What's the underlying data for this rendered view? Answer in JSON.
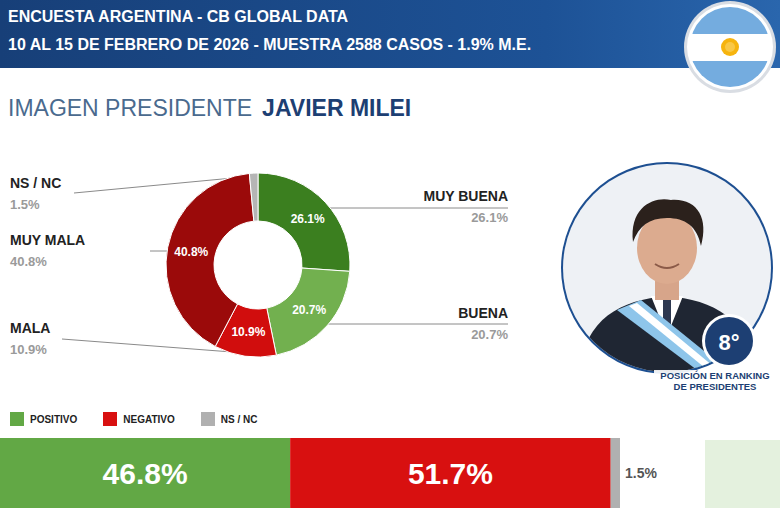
{
  "header": {
    "line1": "ENCUESTA ARGENTINA - CB GLOBAL DATA",
    "line2": "10 AL 15 DE FEBRERO DE 2026 - MUESTRA 2588 CASOS - 1.9% M.E.",
    "title": "IMAGEN PRESIDENTE",
    "name": "JAVIER MILEI"
  },
  "badge": {
    "rank": "8°",
    "caption": "POSICIÓN EN RANKING DE PRESIDENTES"
  },
  "chart_data": [
    {
      "type": "pie",
      "categories": [
        "MUY BUENA",
        "BUENA",
        "MALA",
        "MUY MALA",
        "NS / NC"
      ],
      "values": [
        26.1,
        20.7,
        10.9,
        40.8,
        1.5
      ],
      "value_labels": [
        "26.1%",
        "20.7%",
        "10.9%",
        "40.8%",
        "1.5%"
      ],
      "colors": [
        "#3b7f1f",
        "#72b04f",
        "#d10d0d",
        "#9b0a0a",
        "#b5b5b5"
      ],
      "data_labels": true
    },
    {
      "type": "bar",
      "orientation": "horizontal",
      "stacked": true,
      "categories": [
        null
      ],
      "series": [
        {
          "name": "POSITIVO",
          "color": "#62a845",
          "values": [
            46.8
          ],
          "value_labels": [
            "46.8%"
          ]
        },
        {
          "name": "NEGATIVO",
          "color": "#d81010",
          "values": [
            51.7
          ],
          "value_labels": [
            "51.7%"
          ]
        },
        {
          "name": "NS / NC",
          "color": "#b0b0b0",
          "values": [
            1.5
          ],
          "value_labels": [
            "1.5%"
          ]
        }
      ],
      "xlim": [
        0,
        100
      ],
      "tick_labels": false,
      "legend": "top",
      "data_labels": true
    }
  ]
}
